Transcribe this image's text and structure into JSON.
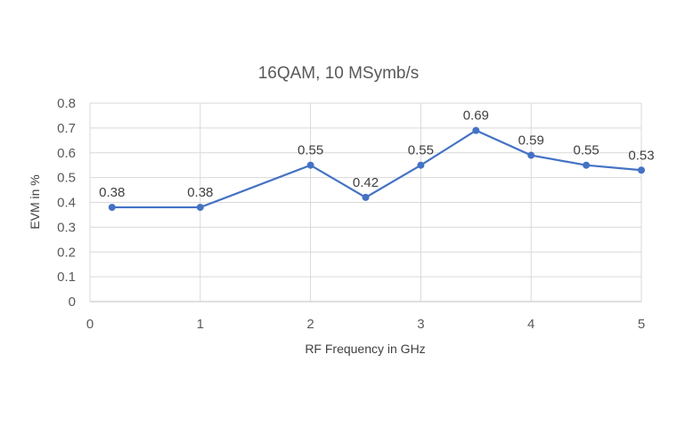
{
  "chart_data": {
    "type": "line",
    "title": "16QAM, 10 MSymb/s",
    "xlabel": "RF Frequency in GHz",
    "ylabel": "EVM in %",
    "xlim": [
      0,
      5
    ],
    "ylim": [
      0,
      0.8
    ],
    "xticks": [
      0,
      1,
      2,
      3,
      4,
      5
    ],
    "yticks": [
      0,
      0.1,
      0.2,
      0.3,
      0.4,
      0.5,
      0.6,
      0.7,
      0.8
    ],
    "grid": true,
    "legend": "none",
    "series": [
      {
        "color": "#4472c4",
        "points": [
          {
            "x": 0.2,
            "y": 0.38,
            "label": "0.38"
          },
          {
            "x": 1,
            "y": 0.38,
            "label": "0.38"
          },
          {
            "x": 2,
            "y": 0.55,
            "label": "0.55"
          },
          {
            "x": 2.5,
            "y": 0.42,
            "label": "0.42"
          },
          {
            "x": 3,
            "y": 0.55,
            "label": "0.55"
          },
          {
            "x": 3.5,
            "y": 0.69,
            "label": "0.69"
          },
          {
            "x": 4,
            "y": 0.59,
            "label": "0.59"
          },
          {
            "x": 4.5,
            "y": 0.55,
            "label": "0.55"
          },
          {
            "x": 5,
            "y": 0.53,
            "label": "0.53"
          }
        ]
      }
    ]
  }
}
